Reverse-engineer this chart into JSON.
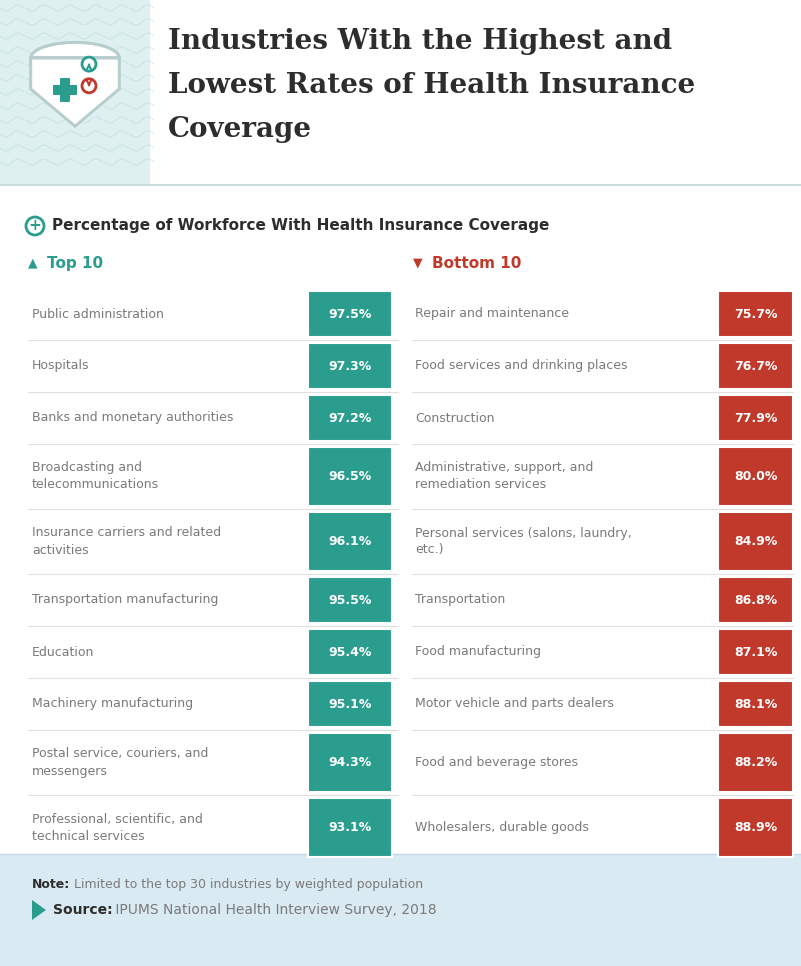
{
  "title_line1": "Industries With the Highest and",
  "title_line2": "Lowest Rates of Health Insurance",
  "title_line3": "Coverage",
  "subtitle": "Percentage of Workforce With Health Insurance Coverage",
  "top10_label": "Top 10",
  "bottom10_label": "Bottom 10",
  "top10": [
    {
      "label": "Public administration",
      "value": "97.5%"
    },
    {
      "label": "Hospitals",
      "value": "97.3%"
    },
    {
      "label": "Banks and monetary authorities",
      "value": "97.2%"
    },
    {
      "label": "Broadcasting and\ntelecommunications",
      "value": "96.5%"
    },
    {
      "label": "Insurance carriers and related\nactivities",
      "value": "96.1%"
    },
    {
      "label": "Transportation manufacturing",
      "value": "95.5%"
    },
    {
      "label": "Education",
      "value": "95.4%"
    },
    {
      "label": "Machinery manufacturing",
      "value": "95.1%"
    },
    {
      "label": "Postal service, couriers, and\nmessengers",
      "value": "94.3%"
    },
    {
      "label": "Professional, scientific, and\ntechnical services",
      "value": "93.1%"
    }
  ],
  "bottom10": [
    {
      "label": "Repair and maintenance",
      "value": "75.7%"
    },
    {
      "label": "Food services and drinking places",
      "value": "76.7%"
    },
    {
      "label": "Construction",
      "value": "77.9%"
    },
    {
      "label": "Administrative, support, and\nremediation services",
      "value": "80.0%"
    },
    {
      "label": "Personal services (salons, laundry,\netc.)",
      "value": "84.9%"
    },
    {
      "label": "Transportation",
      "value": "86.8%"
    },
    {
      "label": "Food manufacturing",
      "value": "87.1%"
    },
    {
      "label": "Motor vehicle and parts dealers",
      "value": "88.1%"
    },
    {
      "label": "Food and beverage stores",
      "value": "88.2%"
    },
    {
      "label": "Wholesalers, durable goods",
      "value": "88.9%"
    }
  ],
  "teal_dark": "#1a8a7a",
  "teal_mid": "#2a9d8f",
  "teal_light": "#5bbfb0",
  "red_dark": "#a93226",
  "red_mid": "#c0392b",
  "red_light": "#d9534f",
  "bg_white": "#ffffff",
  "bg_header_left": "#dff0f0",
  "bg_footer": "#daeaf2",
  "separator_color": "#e0e0e0",
  "title_color": "#2d2d2d",
  "label_color": "#7a7a7a",
  "note_bold": "Note:",
  "note_rest": " Limited to the top 30 industries by weighted population",
  "source_bold": "Source:",
  "source_rest": " IPUMS National Health Interview Survey, 2018"
}
